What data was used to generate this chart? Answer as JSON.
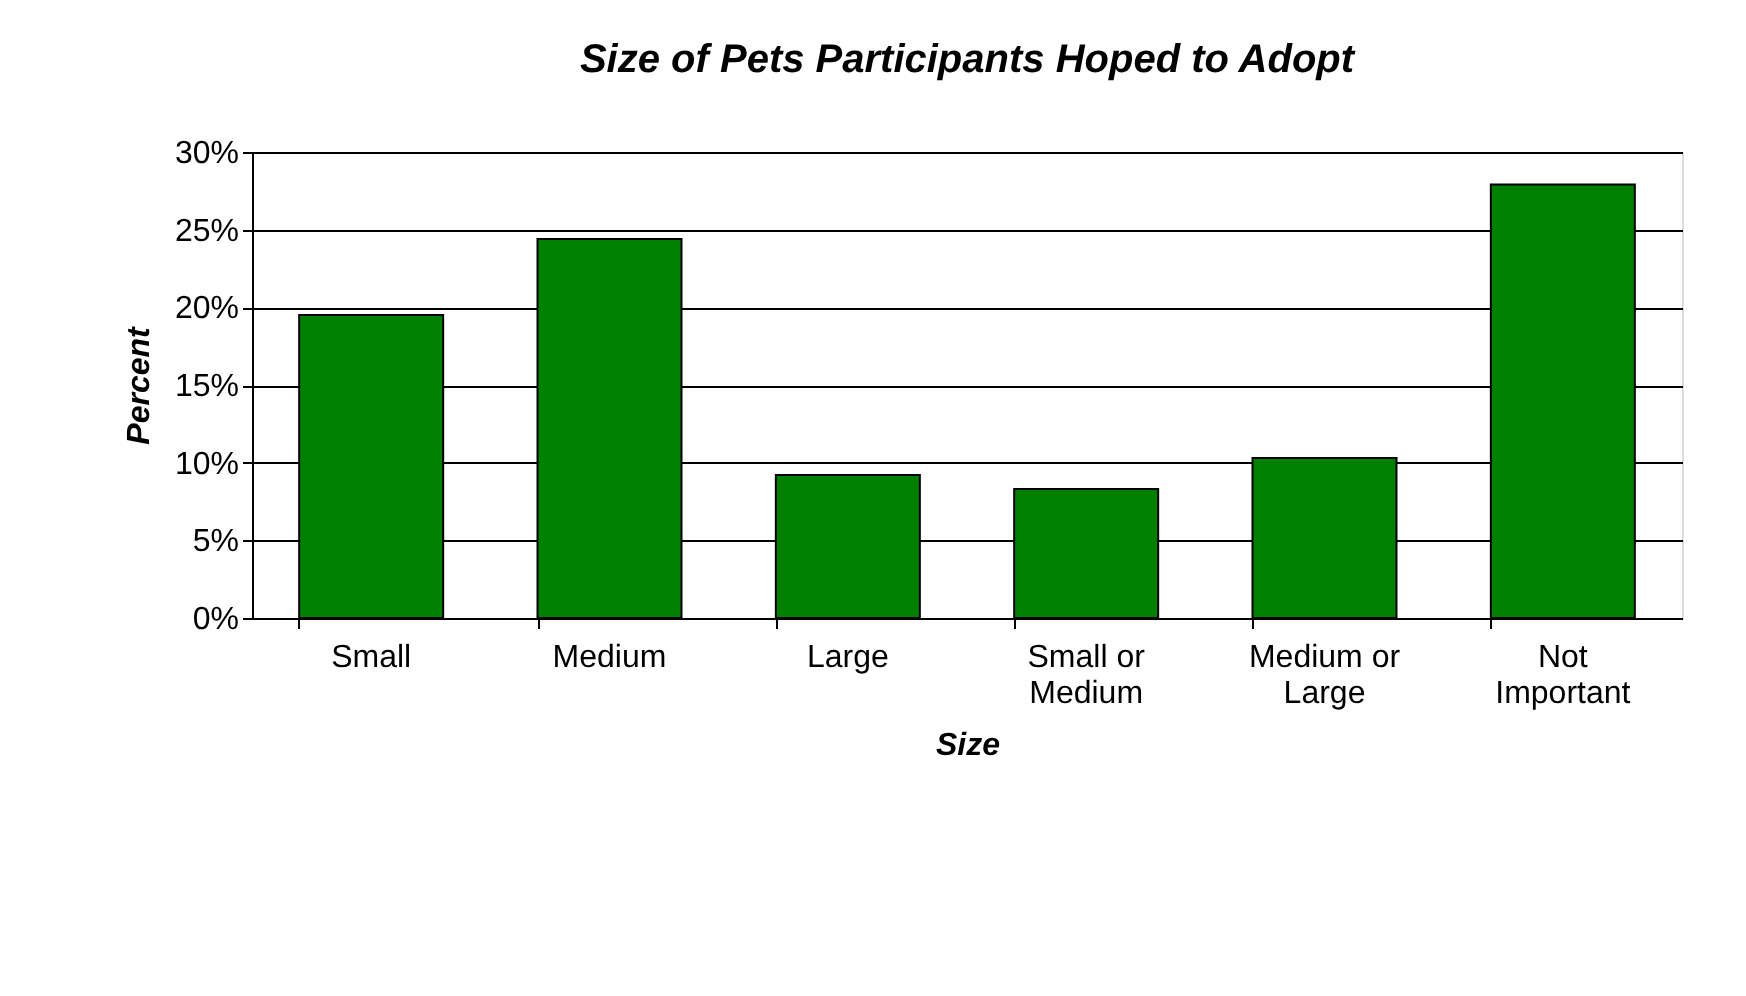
{
  "chart_data": {
    "type": "bar",
    "title": "Size of Pets Participants Hoped to Adopt",
    "xlabel": "Size",
    "ylabel": "Percent",
    "categories": [
      "Small",
      "Medium",
      "Large",
      "Small or Medium",
      "Medium or Large",
      "Not Important"
    ],
    "values": [
      19.5,
      24.4,
      9.2,
      8.3,
      10.3,
      27.9
    ],
    "color": "#008000",
    "ylim": [
      0,
      30
    ],
    "yticks": [
      {
        "value": 0,
        "label": "0%"
      },
      {
        "value": 5,
        "label": "5%"
      },
      {
        "value": 10,
        "label": "10%"
      },
      {
        "value": 15,
        "label": "15%"
      },
      {
        "value": 20,
        "label": "20%"
      },
      {
        "value": 25,
        "label": "25%"
      },
      {
        "value": 30,
        "label": "30%"
      }
    ],
    "grid": "y"
  }
}
